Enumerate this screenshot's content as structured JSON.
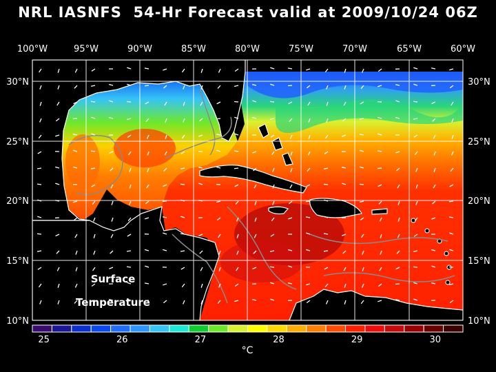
{
  "title": "NRL IASNFS  54-Hr Forecast valid at 2009/10/24 06Z",
  "lon_labels": [
    "100°W",
    "95°W",
    "90°W",
    "85°W",
    "80°W",
    "75°W",
    "70°W",
    "65°W",
    "60°W"
  ],
  "lat_labels": [
    "30°N",
    "25°N",
    "20°N",
    "15°N",
    "10°N"
  ],
  "annotation": [
    "Surface",
    "Temperature"
  ],
  "colorbar": {
    "ticks": [
      "25",
      "26",
      "27",
      "28",
      "29",
      "30"
    ],
    "unit": "°C",
    "colors": [
      "#3a0b6e",
      "#1a1696",
      "#0c2fd0",
      "#0a48f0",
      "#1f6cff",
      "#2f96ff",
      "#35c4f6",
      "#1de8d8",
      "#10cc33",
      "#6ee82a",
      "#d8f230",
      "#ffff00",
      "#ffd800",
      "#ffac00",
      "#ff7e00",
      "#ff4c00",
      "#ff2000",
      "#ee0b0b",
      "#c60a0a",
      "#990000",
      "#6a0000",
      "#3d0000"
    ]
  },
  "colors": {
    "background": "#000000",
    "land": "#000000",
    "coast": "#ffffff",
    "bathymetry": "#8a8a8a"
  }
}
